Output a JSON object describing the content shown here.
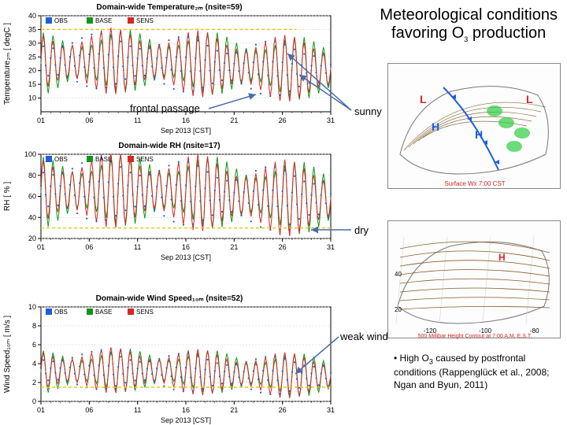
{
  "header": {
    "line1": "Meteorological conditions",
    "line2_prefix": "favoring O",
    "line2_sub": "3",
    "line2_suffix": " production",
    "fontsize": 20
  },
  "annotations": {
    "frontal_passage": "frontal passage",
    "sunny": "sunny",
    "dry": "dry",
    "weak_wind": "weak wind"
  },
  "bullet": {
    "prefix": "•   High O",
    "sub": "3",
    "text": " caused by postfrontal conditions (Rappenglück et al., 2008; Ngan and Byun, 2011)"
  },
  "colors": {
    "obs": "#1e5fd6",
    "base": "#109618",
    "sens": "#d62728",
    "grid": "#cccccc",
    "dashed": "#f0c419",
    "arrow": "#4a6da7",
    "map_border": "#888888"
  },
  "chart_temp": {
    "title": "Domain-wide Temperature₂ₘ (nsite=59)",
    "ylabel": "Temperature₂ₘ [ degC ]",
    "legend": [
      "OBS",
      "BASE",
      "SENS"
    ],
    "xlim": [
      1,
      31
    ],
    "ylim": [
      5,
      40
    ],
    "yticks": [
      10,
      15,
      20,
      25,
      30,
      35,
      40
    ],
    "xtick_step": 5,
    "xlabel": "Sep 2013 [CST]",
    "days": 30,
    "mean": 22,
    "amp": 10,
    "dashed_y": 35,
    "dashed_w": 370
  },
  "chart_rh": {
    "title": "Domain-wide RH (nsite=17)",
    "ylabel": "RH [ % ]",
    "legend": [
      "OBS",
      "BASE",
      "SENS"
    ],
    "xlim": [
      1,
      31
    ],
    "ylim": [
      20,
      100
    ],
    "yticks": [
      20,
      40,
      60,
      80,
      100
    ],
    "xtick_step": 5,
    "xlabel": "Sep 2013 [CST]",
    "days": 30,
    "mean": 62,
    "amp": 30,
    "dashed_y": 30,
    "dashed_w": 420
  },
  "chart_wind": {
    "title": "Domain-wide Wind Speed₁₀ₘ (nsite=52)",
    "ylabel": "Wind Speed₁₀ₘ [ m/s ]",
    "legend": [
      "OBS",
      "BASE",
      "SENS"
    ],
    "xlim": [
      1,
      31
    ],
    "ylim": [
      0,
      10
    ],
    "yticks": [
      0,
      2,
      4,
      6,
      8,
      10
    ],
    "xtick_step": 5,
    "xlabel": "Sep 2013 [CST]",
    "days": 30,
    "mean": 3,
    "amp": 2,
    "dashed_y": 1.5,
    "dashed_w": 420
  },
  "map1": {
    "caption_l1": "Surface Wx",
    "caption_l2": "7:00 CST"
  },
  "map2": {
    "caption": "500 Millibar Height Contour at 7:00 A.M. E.S.T."
  }
}
